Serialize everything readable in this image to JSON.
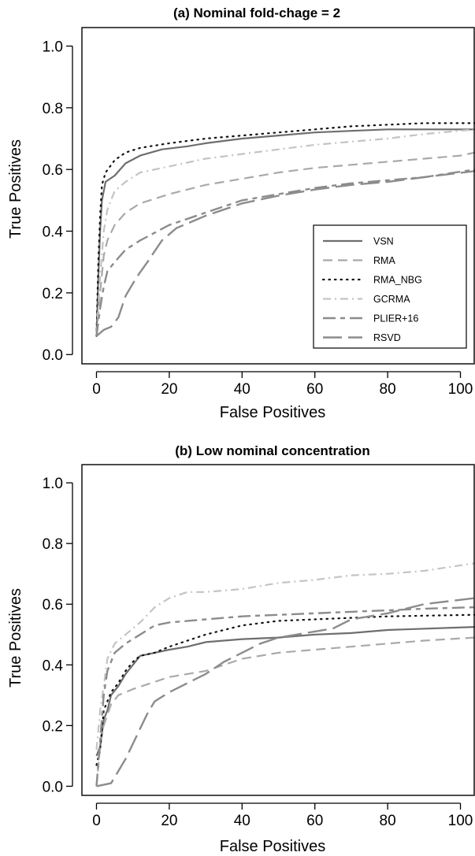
{
  "styles": {
    "VSN": {
      "color": "#6e6e6e",
      "dash": "",
      "width": 2.2
    },
    "RMA": {
      "color": "#a9a9a9",
      "dash": "12 7",
      "width": 2.2
    },
    "RMA_NBG": {
      "color": "#111111",
      "dash": "1.5 6",
      "width": 2.2,
      "cap": "round"
    },
    "GCRMA": {
      "color": "#c4c4c4",
      "dash": "10 5 2 5",
      "width": 2.2
    },
    "PLIER+16": {
      "color": "#8c8c8c",
      "dash": "16 6 6 6",
      "width": 2.4
    },
    "RSVD": {
      "color": "#8c8c8c",
      "dash": "24 8",
      "width": 2.4
    }
  },
  "chart_data": [
    {
      "type": "line",
      "title": "(a) Nominal fold-chage = 2",
      "xlabel": "False Positives",
      "ylabel": "True Positives",
      "xlim": [
        -4,
        104
      ],
      "ylim": [
        -0.03,
        1.06
      ],
      "xticks": [
        0,
        20,
        40,
        60,
        80,
        100
      ],
      "xtick_labels": [
        "0",
        "20",
        "40",
        "60",
        "80",
        "100"
      ],
      "yticks": [
        0.0,
        0.2,
        0.4,
        0.6,
        0.8,
        1.0
      ],
      "ytick_labels": [
        "0.0",
        "0.2",
        "0.4",
        "0.6",
        "0.8",
        "1.0"
      ],
      "legend": {
        "position": "lower-right",
        "entries": [
          "VSN",
          "RMA",
          "RMA_NBG",
          "GCRMA",
          "PLIER+16",
          "RSVD"
        ]
      },
      "series": [
        {
          "name": "VSN",
          "points": [
            [
              0,
              0.06
            ],
            [
              0.5,
              0.25
            ],
            [
              1,
              0.4
            ],
            [
              1.5,
              0.5
            ],
            [
              2.5,
              0.56
            ],
            [
              5,
              0.58
            ],
            [
              8,
              0.62
            ],
            [
              12,
              0.645
            ],
            [
              18,
              0.665
            ],
            [
              25,
              0.675
            ],
            [
              30,
              0.685
            ],
            [
              40,
              0.7
            ],
            [
              50,
              0.71
            ],
            [
              60,
              0.72
            ],
            [
              70,
              0.725
            ],
            [
              80,
              0.73
            ],
            [
              104,
              0.73
            ]
          ]
        },
        {
          "name": "RMA",
          "points": [
            [
              0,
              0.06
            ],
            [
              1,
              0.2
            ],
            [
              2,
              0.32
            ],
            [
              3,
              0.37
            ],
            [
              5,
              0.42
            ],
            [
              8,
              0.46
            ],
            [
              12,
              0.49
            ],
            [
              20,
              0.52
            ],
            [
              30,
              0.55
            ],
            [
              40,
              0.57
            ],
            [
              50,
              0.59
            ],
            [
              60,
              0.605
            ],
            [
              70,
              0.615
            ],
            [
              80,
              0.625
            ],
            [
              90,
              0.635
            ],
            [
              100,
              0.645
            ],
            [
              104,
              0.655
            ]
          ]
        },
        {
          "name": "RMA_NBG",
          "points": [
            [
              0,
              0.06
            ],
            [
              0.5,
              0.3
            ],
            [
              1,
              0.45
            ],
            [
              1.5,
              0.55
            ],
            [
              2.5,
              0.59
            ],
            [
              5,
              0.63
            ],
            [
              8,
              0.655
            ],
            [
              12,
              0.67
            ],
            [
              20,
              0.685
            ],
            [
              30,
              0.7
            ],
            [
              40,
              0.71
            ],
            [
              50,
              0.72
            ],
            [
              60,
              0.73
            ],
            [
              70,
              0.74
            ],
            [
              80,
              0.745
            ],
            [
              90,
              0.75
            ],
            [
              104,
              0.75
            ]
          ]
        },
        {
          "name": "GCRMA",
          "points": [
            [
              0,
              0.06
            ],
            [
              1,
              0.25
            ],
            [
              2,
              0.4
            ],
            [
              3,
              0.47
            ],
            [
              5,
              0.53
            ],
            [
              8,
              0.56
            ],
            [
              12,
              0.59
            ],
            [
              20,
              0.61
            ],
            [
              30,
              0.635
            ],
            [
              40,
              0.65
            ],
            [
              50,
              0.665
            ],
            [
              60,
              0.68
            ],
            [
              70,
              0.69
            ],
            [
              80,
              0.7
            ],
            [
              90,
              0.715
            ],
            [
              104,
              0.73
            ]
          ]
        },
        {
          "name": "PLIER+16",
          "points": [
            [
              0,
              0.06
            ],
            [
              1,
              0.15
            ],
            [
              2,
              0.22
            ],
            [
              3,
              0.27
            ],
            [
              5,
              0.3
            ],
            [
              8,
              0.34
            ],
            [
              12,
              0.37
            ],
            [
              20,
              0.42
            ],
            [
              30,
              0.46
            ],
            [
              40,
              0.5
            ],
            [
              50,
              0.52
            ],
            [
              60,
              0.54
            ],
            [
              70,
              0.555
            ],
            [
              80,
              0.565
            ],
            [
              90,
              0.575
            ],
            [
              104,
              0.6
            ]
          ]
        },
        {
          "name": "RSVD",
          "points": [
            [
              0,
              0.06
            ],
            [
              2,
              0.08
            ],
            [
              4,
              0.09
            ],
            [
              6,
              0.12
            ],
            [
              8,
              0.19
            ],
            [
              11,
              0.25
            ],
            [
              14,
              0.3
            ],
            [
              18,
              0.37
            ],
            [
              22,
              0.41
            ],
            [
              30,
              0.45
            ],
            [
              40,
              0.49
            ],
            [
              50,
              0.515
            ],
            [
              60,
              0.535
            ],
            [
              70,
              0.55
            ],
            [
              80,
              0.56
            ],
            [
              90,
              0.575
            ],
            [
              104,
              0.595
            ]
          ]
        }
      ]
    },
    {
      "type": "line",
      "title": "(b) Low nominal concentration",
      "xlabel": "False Positives",
      "ylabel": "True Positives",
      "xlim": [
        -4,
        104
      ],
      "ylim": [
        -0.03,
        1.06
      ],
      "xticks": [
        0,
        20,
        40,
        60,
        80,
        100
      ],
      "xtick_labels": [
        "0",
        "20",
        "40",
        "60",
        "80",
        "100"
      ],
      "yticks": [
        0.0,
        0.2,
        0.4,
        0.6,
        0.8,
        1.0
      ],
      "ytick_labels": [
        "0.0",
        "0.2",
        "0.4",
        "0.6",
        "0.8",
        "1.0"
      ],
      "series": [
        {
          "name": "VSN",
          "points": [
            [
              0,
              0.1
            ],
            [
              1,
              0.13
            ],
            [
              2,
              0.22
            ],
            [
              3,
              0.25
            ],
            [
              4,
              0.3
            ],
            [
              6,
              0.33
            ],
            [
              8,
              0.37
            ],
            [
              10,
              0.4
            ],
            [
              12,
              0.43
            ],
            [
              16,
              0.44
            ],
            [
              20,
              0.45
            ],
            [
              25,
              0.46
            ],
            [
              30,
              0.475
            ],
            [
              40,
              0.485
            ],
            [
              50,
              0.49
            ],
            [
              60,
              0.5
            ],
            [
              70,
              0.505
            ],
            [
              80,
              0.515
            ],
            [
              104,
              0.525
            ]
          ]
        },
        {
          "name": "RMA",
          "points": [
            [
              0,
              0.0
            ],
            [
              1,
              0.13
            ],
            [
              2,
              0.2
            ],
            [
              4,
              0.27
            ],
            [
              6,
              0.3
            ],
            [
              10,
              0.32
            ],
            [
              15,
              0.34
            ],
            [
              20,
              0.36
            ],
            [
              30,
              0.38
            ],
            [
              40,
              0.42
            ],
            [
              50,
              0.44
            ],
            [
              60,
              0.45
            ],
            [
              70,
              0.46
            ],
            [
              80,
              0.47
            ],
            [
              90,
              0.48
            ],
            [
              104,
              0.49
            ]
          ]
        },
        {
          "name": "RMA_NBG",
          "points": [
            [
              0,
              0.07
            ],
            [
              1,
              0.12
            ],
            [
              2,
              0.25
            ],
            [
              3,
              0.28
            ],
            [
              4,
              0.31
            ],
            [
              6,
              0.34
            ],
            [
              8,
              0.38
            ],
            [
              10,
              0.41
            ],
            [
              12,
              0.43
            ],
            [
              16,
              0.44
            ],
            [
              20,
              0.46
            ],
            [
              30,
              0.5
            ],
            [
              40,
              0.53
            ],
            [
              50,
              0.545
            ],
            [
              60,
              0.55
            ],
            [
              70,
              0.555
            ],
            [
              80,
              0.56
            ],
            [
              104,
              0.565
            ]
          ]
        },
        {
          "name": "GCRMA",
          "points": [
            [
              0,
              0.12
            ],
            [
              1,
              0.25
            ],
            [
              2,
              0.33
            ],
            [
              3,
              0.42
            ],
            [
              5,
              0.47
            ],
            [
              8,
              0.5
            ],
            [
              12,
              0.54
            ],
            [
              16,
              0.59
            ],
            [
              20,
              0.62
            ],
            [
              25,
              0.64
            ],
            [
              30,
              0.64
            ],
            [
              40,
              0.65
            ],
            [
              50,
              0.67
            ],
            [
              60,
              0.68
            ],
            [
              70,
              0.695
            ],
            [
              80,
              0.7
            ],
            [
              90,
              0.71
            ],
            [
              104,
              0.735
            ]
          ]
        },
        {
          "name": "PLIER+16",
          "points": [
            [
              0,
              0.0
            ],
            [
              1,
              0.15
            ],
            [
              2,
              0.3
            ],
            [
              3,
              0.38
            ],
            [
              5,
              0.44
            ],
            [
              8,
              0.47
            ],
            [
              12,
              0.5
            ],
            [
              16,
              0.53
            ],
            [
              20,
              0.54
            ],
            [
              30,
              0.55
            ],
            [
              40,
              0.56
            ],
            [
              50,
              0.565
            ],
            [
              60,
              0.57
            ],
            [
              70,
              0.575
            ],
            [
              80,
              0.58
            ],
            [
              90,
              0.585
            ],
            [
              104,
              0.59
            ]
          ]
        },
        {
          "name": "RSVD",
          "points": [
            [
              0,
              0.0
            ],
            [
              4,
              0.01
            ],
            [
              6,
              0.05
            ],
            [
              8,
              0.09
            ],
            [
              10,
              0.14
            ],
            [
              12,
              0.19
            ],
            [
              14,
              0.24
            ],
            [
              16,
              0.28
            ],
            [
              20,
              0.31
            ],
            [
              25,
              0.34
            ],
            [
              30,
              0.37
            ],
            [
              35,
              0.41
            ],
            [
              40,
              0.44
            ],
            [
              45,
              0.47
            ],
            [
              50,
              0.49
            ],
            [
              55,
              0.5
            ],
            [
              60,
              0.51
            ],
            [
              65,
              0.52
            ],
            [
              70,
              0.55
            ],
            [
              75,
              0.56
            ],
            [
              80,
              0.57
            ],
            [
              90,
              0.6
            ],
            [
              104,
              0.62
            ]
          ]
        }
      ]
    }
  ]
}
